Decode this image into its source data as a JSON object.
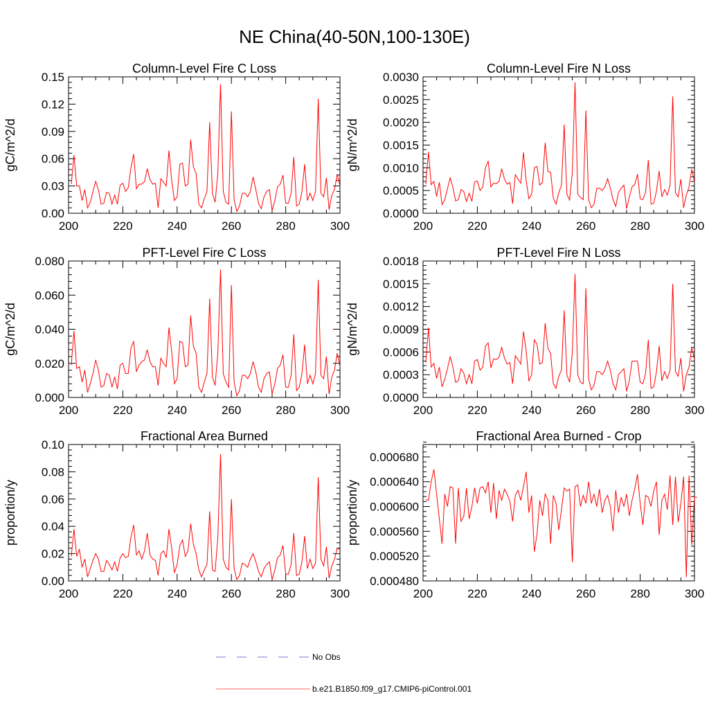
{
  "figure_title": "NE China(40-50N,100-130E)",
  "colors": {
    "model": "#ff0000",
    "obs": "#7777cc",
    "axis": "#000000"
  },
  "legend": {
    "obs_label": "No Obs",
    "model_label": "b.e21.B1850.f09_g17.CMIP6-piControl.001"
  },
  "chart_data": [
    {
      "type": "line",
      "title": "Column-Level Fire C Loss",
      "xlabel": "",
      "ylabel": "gC/m^2/d",
      "xlim": [
        200,
        300
      ],
      "ylim": [
        0,
        0.15
      ],
      "xticks": [
        200,
        220,
        240,
        260,
        280,
        300
      ],
      "xticklabels": [
        "200",
        "220",
        "240",
        "260",
        "280",
        "300"
      ],
      "yticks": [
        0,
        0.03,
        0.06,
        0.09,
        0.12,
        0.15
      ],
      "yticklabels": [
        "0.00",
        "0.03",
        "0.06",
        "0.09",
        "0.12",
        "0.15"
      ],
      "series": [
        {
          "name": "b.e21.B1850.f09_g17.CMIP6-piControl.001",
          "x_start": 201,
          "values": [
            0.032,
            0.064,
            0.03,
            0.03,
            0.014,
            0.026,
            0.006,
            0.012,
            0.024,
            0.035,
            0.026,
            0.01,
            0.011,
            0.023,
            0.022,
            0.01,
            0.02,
            0.01,
            0.031,
            0.033,
            0.024,
            0.028,
            0.05,
            0.065,
            0.027,
            0.032,
            0.032,
            0.035,
            0.049,
            0.037,
            0.032,
            0.033,
            0.006,
            0.038,
            0.034,
            0.03,
            0.069,
            0.036,
            0.014,
            0.018,
            0.054,
            0.055,
            0.03,
            0.032,
            0.081,
            0.051,
            0.044,
            0.01,
            0.006,
            0.016,
            0.024,
            0.1,
            0.022,
            0.012,
            0.044,
            0.142,
            0.024,
            0.012,
            0.01,
            0.112,
            0.015,
            0.002,
            0.008,
            0.022,
            0.022,
            0.018,
            0.024,
            0.04,
            0.026,
            0.011,
            0.005,
            0.018,
            0.024,
            0.026,
            0.003,
            0.014,
            0.029,
            0.032,
            0.042,
            0.011,
            0.011,
            0.022,
            0.062,
            0.008,
            0.01,
            0.024,
            0.054,
            0.014,
            0.022,
            0.014,
            0.024,
            0.126,
            0.022,
            0.018,
            0.039,
            0.004,
            0.02,
            0.026,
            0.043,
            0.03
          ]
        }
      ]
    },
    {
      "type": "line",
      "title": "Column-Level Fire N Loss",
      "xlabel": "",
      "ylabel": "gN/m^2/d",
      "xlim": [
        200,
        300
      ],
      "ylim": [
        0,
        0.003
      ],
      "xticks": [
        200,
        220,
        240,
        260,
        280,
        300
      ],
      "xticklabels": [
        "200",
        "220",
        "240",
        "260",
        "280",
        "300"
      ],
      "yticks": [
        0,
        0.0005,
        0.001,
        0.0015,
        0.002,
        0.0025,
        0.003
      ],
      "yticklabels": [
        "0.0000",
        "0.0005",
        "0.0010",
        "0.0015",
        "0.0020",
        "0.0025",
        "0.0030"
      ],
      "series": [
        {
          "name": "b.e21.B1850.f09_g17.CMIP6-piControl.001",
          "x_start": 201,
          "values": [
            0.00064,
            0.00135,
            0.00063,
            0.0007,
            0.00037,
            0.00068,
            0.00019,
            0.0003,
            0.00054,
            0.00078,
            0.00057,
            0.00027,
            0.0003,
            0.00052,
            0.00048,
            0.00026,
            0.00044,
            0.00026,
            0.00069,
            0.00071,
            0.0005,
            0.00058,
            0.001,
            0.00115,
            0.00058,
            0.00066,
            0.00065,
            0.0007,
            0.00098,
            0.00075,
            0.00064,
            0.00068,
            0.00021,
            0.00085,
            0.00075,
            0.00066,
            0.00134,
            0.00071,
            0.00032,
            0.00042,
            0.001,
            0.00103,
            0.00062,
            0.00068,
            0.00155,
            0.00092,
            0.0009,
            0.00033,
            0.0002,
            0.00045,
            0.00062,
            0.00195,
            0.00042,
            0.00029,
            0.0009,
            0.00288,
            0.00042,
            0.00035,
            0.0003,
            0.00226,
            0.0003,
            0.00012,
            0.0002,
            0.00055,
            0.00055,
            0.0005,
            0.00058,
            0.00076,
            0.00055,
            0.0003,
            0.00015,
            0.00046,
            0.00055,
            0.00062,
            0.0001,
            0.00036,
            0.00058,
            0.00063,
            0.00086,
            0.00032,
            0.0003,
            0.00047,
            0.00117,
            0.0002,
            0.00022,
            0.00049,
            0.00093,
            0.00036,
            0.00052,
            0.0004,
            0.00062,
            0.00257,
            0.00045,
            0.00036,
            0.00075,
            0.00012,
            0.0004,
            0.00058,
            0.00097,
            0.00069
          ]
        }
      ]
    },
    {
      "type": "line",
      "title": "PFT-Level Fire C Loss",
      "xlabel": "",
      "ylabel": "gC/m^2/d",
      "xlim": [
        200,
        300
      ],
      "ylim": [
        0,
        0.08
      ],
      "xticks": [
        200,
        220,
        240,
        260,
        280,
        300
      ],
      "xticklabels": [
        "200",
        "220",
        "240",
        "260",
        "280",
        "300"
      ],
      "yticks": [
        0,
        0.02,
        0.04,
        0.06,
        0.08
      ],
      "yticklabels": [
        "0.000",
        "0.020",
        "0.040",
        "0.060",
        "0.080"
      ],
      "series": [
        {
          "name": "b.e21.B1850.f09_g17.CMIP6-piControl.001",
          "x_start": 201,
          "values": [
            0.019,
            0.039,
            0.017,
            0.018,
            0.009,
            0.016,
            0.003,
            0.008,
            0.014,
            0.022,
            0.016,
            0.006,
            0.007,
            0.014,
            0.013,
            0.006,
            0.012,
            0.005,
            0.019,
            0.02,
            0.014,
            0.014,
            0.029,
            0.033,
            0.015,
            0.019,
            0.021,
            0.022,
            0.028,
            0.021,
            0.018,
            0.018,
            0.007,
            0.023,
            0.02,
            0.018,
            0.041,
            0.027,
            0.008,
            0.011,
            0.033,
            0.032,
            0.018,
            0.019,
            0.048,
            0.03,
            0.026,
            0.006,
            0.003,
            0.009,
            0.014,
            0.058,
            0.012,
            0.007,
            0.026,
            0.075,
            0.014,
            0.009,
            0.006,
            0.066,
            0.009,
            0.001,
            0.004,
            0.013,
            0.013,
            0.011,
            0.014,
            0.021,
            0.015,
            0.006,
            0.003,
            0.011,
            0.014,
            0.015,
            0.002,
            0.008,
            0.017,
            0.019,
            0.025,
            0.006,
            0.006,
            0.013,
            0.037,
            0.004,
            0.006,
            0.014,
            0.031,
            0.008,
            0.013,
            0.008,
            0.014,
            0.069,
            0.013,
            0.011,
            0.024,
            0.002,
            0.012,
            0.016,
            0.026,
            0.018
          ]
        }
      ]
    },
    {
      "type": "line",
      "title": "PFT-Level Fire N Loss",
      "xlabel": "",
      "ylabel": "gN/m^2/d",
      "xlim": [
        200,
        300
      ],
      "ylim": [
        0,
        0.0018
      ],
      "xticks": [
        200,
        220,
        240,
        260,
        280,
        300
      ],
      "xticklabels": [
        "200",
        "220",
        "240",
        "260",
        "280",
        "300"
      ],
      "yticks": [
        0,
        0.0003,
        0.0006,
        0.0009,
        0.0012,
        0.0015,
        0.0018
      ],
      "yticklabels": [
        "0.0000",
        "0.0003",
        "0.0006",
        "0.0009",
        "0.0012",
        "0.0015",
        "0.0018"
      ],
      "series": [
        {
          "name": "b.e21.B1850.f09_g17.CMIP6-piControl.001",
          "x_start": 201,
          "values": [
            0.00046,
            0.00092,
            0.0004,
            0.00045,
            0.00025,
            0.0004,
            0.00014,
            0.00024,
            0.00038,
            0.00054,
            0.0004,
            0.0002,
            0.00022,
            0.00038,
            0.00032,
            0.00018,
            0.0003,
            0.00018,
            0.00048,
            0.0005,
            0.00036,
            0.0004,
            0.00068,
            0.00072,
            0.00039,
            0.00051,
            0.0005,
            0.00053,
            0.00066,
            0.00052,
            0.00044,
            0.00046,
            0.00018,
            0.00055,
            0.0005,
            0.00044,
            0.00087,
            0.00062,
            0.00022,
            0.0003,
            0.00076,
            0.0007,
            0.00044,
            0.00046,
            0.00098,
            0.00065,
            0.00058,
            0.00018,
            0.00012,
            0.00028,
            0.00036,
            0.00115,
            0.0003,
            0.0002,
            0.0006,
            0.00163,
            0.0003,
            0.0002,
            0.00018,
            0.00144,
            0.00024,
            0.0001,
            0.00016,
            0.00034,
            0.00034,
            0.0003,
            0.00036,
            0.00048,
            0.00036,
            0.00018,
            0.0001,
            0.0003,
            0.00034,
            0.00038,
            8e-05,
            0.00022,
            0.00048,
            0.00048,
            0.00048,
            0.0002,
            0.00018,
            0.00032,
            0.00076,
            0.00012,
            0.00014,
            0.00034,
            0.00068,
            0.00022,
            0.00034,
            0.00025,
            0.00036,
            0.0015,
            0.00034,
            0.00028,
            0.00052,
            8e-05,
            0.0003,
            0.0004,
            0.00066,
            0.0005
          ]
        }
      ]
    },
    {
      "type": "line",
      "title": "Fractional Area Burned",
      "xlabel": "",
      "ylabel": "proportion/y",
      "xlim": [
        200,
        300
      ],
      "ylim": [
        0,
        0.1
      ],
      "xticks": [
        200,
        220,
        240,
        260,
        280,
        300
      ],
      "xticklabels": [
        "200",
        "220",
        "240",
        "260",
        "280",
        "300"
      ],
      "yticks": [
        0,
        0.02,
        0.04,
        0.06,
        0.08,
        0.1
      ],
      "yticklabels": [
        "0.00",
        "0.02",
        "0.04",
        "0.06",
        "0.08",
        "0.10"
      ],
      "series": [
        {
          "name": "b.e21.B1850.f09_g17.CMIP6-piControl.001",
          "x_start": 201,
          "values": [
            0.018,
            0.038,
            0.018,
            0.023,
            0.01,
            0.016,
            0.003,
            0.009,
            0.015,
            0.02,
            0.016,
            0.007,
            0.007,
            0.015,
            0.012,
            0.008,
            0.014,
            0.007,
            0.017,
            0.02,
            0.017,
            0.018,
            0.032,
            0.041,
            0.019,
            0.022,
            0.016,
            0.022,
            0.035,
            0.019,
            0.016,
            0.015,
            0.004,
            0.02,
            0.022,
            0.017,
            0.038,
            0.024,
            0.006,
            0.012,
            0.026,
            0.03,
            0.018,
            0.022,
            0.042,
            0.027,
            0.02,
            0.008,
            0.003,
            0.008,
            0.012,
            0.051,
            0.008,
            0.007,
            0.032,
            0.093,
            0.016,
            0.01,
            0.008,
            0.06,
            0.009,
            0.001,
            0.004,
            0.013,
            0.012,
            0.01,
            0.016,
            0.02,
            0.014,
            0.007,
            0.003,
            0.009,
            0.012,
            0.014,
            0.001,
            0.008,
            0.017,
            0.019,
            0.026,
            0.005,
            0.005,
            0.012,
            0.035,
            0.004,
            0.005,
            0.014,
            0.033,
            0.009,
            0.016,
            0.009,
            0.013,
            0.076,
            0.016,
            0.011,
            0.025,
            0.002,
            0.011,
            0.016,
            0.024,
            0.023
          ]
        }
      ]
    },
    {
      "type": "line",
      "title": "Fractional Area Burned - Crop",
      "xlabel": "",
      "ylabel": "proportion/y",
      "xlim": [
        200,
        300
      ],
      "ylim": [
        0.00048,
        0.0007
      ],
      "xticks": [
        200,
        220,
        240,
        260,
        280,
        300
      ],
      "xticklabels": [
        "200",
        "220",
        "240",
        "260",
        "280",
        "300"
      ],
      "yticks": [
        0.00048,
        0.00052,
        0.00056,
        0.0006,
        0.00064,
        0.00068
      ],
      "yticklabels": [
        "0.000480",
        "0.000520",
        "0.000560",
        "0.000600",
        "0.000640",
        "0.000680"
      ],
      "series": [
        {
          "name": "b.e21.B1850.f09_g17.CMIP6-piControl.001",
          "x_start": 201,
          "values": [
            0.000611,
            0.00061,
            0.00064,
            0.00066,
            0.00062,
            0.00058,
            0.00054,
            0.00062,
            0.0006,
            0.000632,
            0.00063,
            0.00054,
            0.00063,
            0.000576,
            0.000584,
            0.00063,
            0.00058,
            0.0006,
            0.00063,
            0.000605,
            0.00063,
            0.000632,
            0.000622,
            0.00064,
            0.00059,
            0.000638,
            0.00058,
            0.000626,
            0.00061,
            0.000628,
            0.00062,
            0.000608,
            0.000576,
            0.000618,
            0.000626,
            0.00061,
            0.000632,
            0.000656,
            0.00059,
            0.000618,
            0.000527,
            0.000556,
            0.00061,
            0.000585,
            0.00062,
            0.00061,
            0.00054,
            0.000618,
            0.000605,
            0.000562,
            0.000595,
            0.00063,
            0.000625,
            0.000628,
            0.00051,
            0.000632,
            0.000635,
            0.0006,
            0.000618,
            0.000605,
            0.00064,
            0.000605,
            0.00062,
            0.0006,
            0.000628,
            0.00059,
            0.00061,
            0.000618,
            0.0006,
            0.00056,
            0.000626,
            0.00059,
            0.000615,
            0.0006,
            0.00062,
            0.000585,
            0.00061,
            0.000628,
            0.000652,
            0.000605,
            0.00057,
            0.000618,
            0.000615,
            0.0006,
            0.000625,
            0.00064,
            0.000554,
            0.00061,
            0.00062,
            0.000595,
            0.00065,
            0.00057,
            0.000648,
            0.000575,
            0.000605,
            0.000648,
            0.000486,
            0.00065,
            0.000538,
            0.000615,
            0.000615
          ]
        }
      ]
    }
  ]
}
